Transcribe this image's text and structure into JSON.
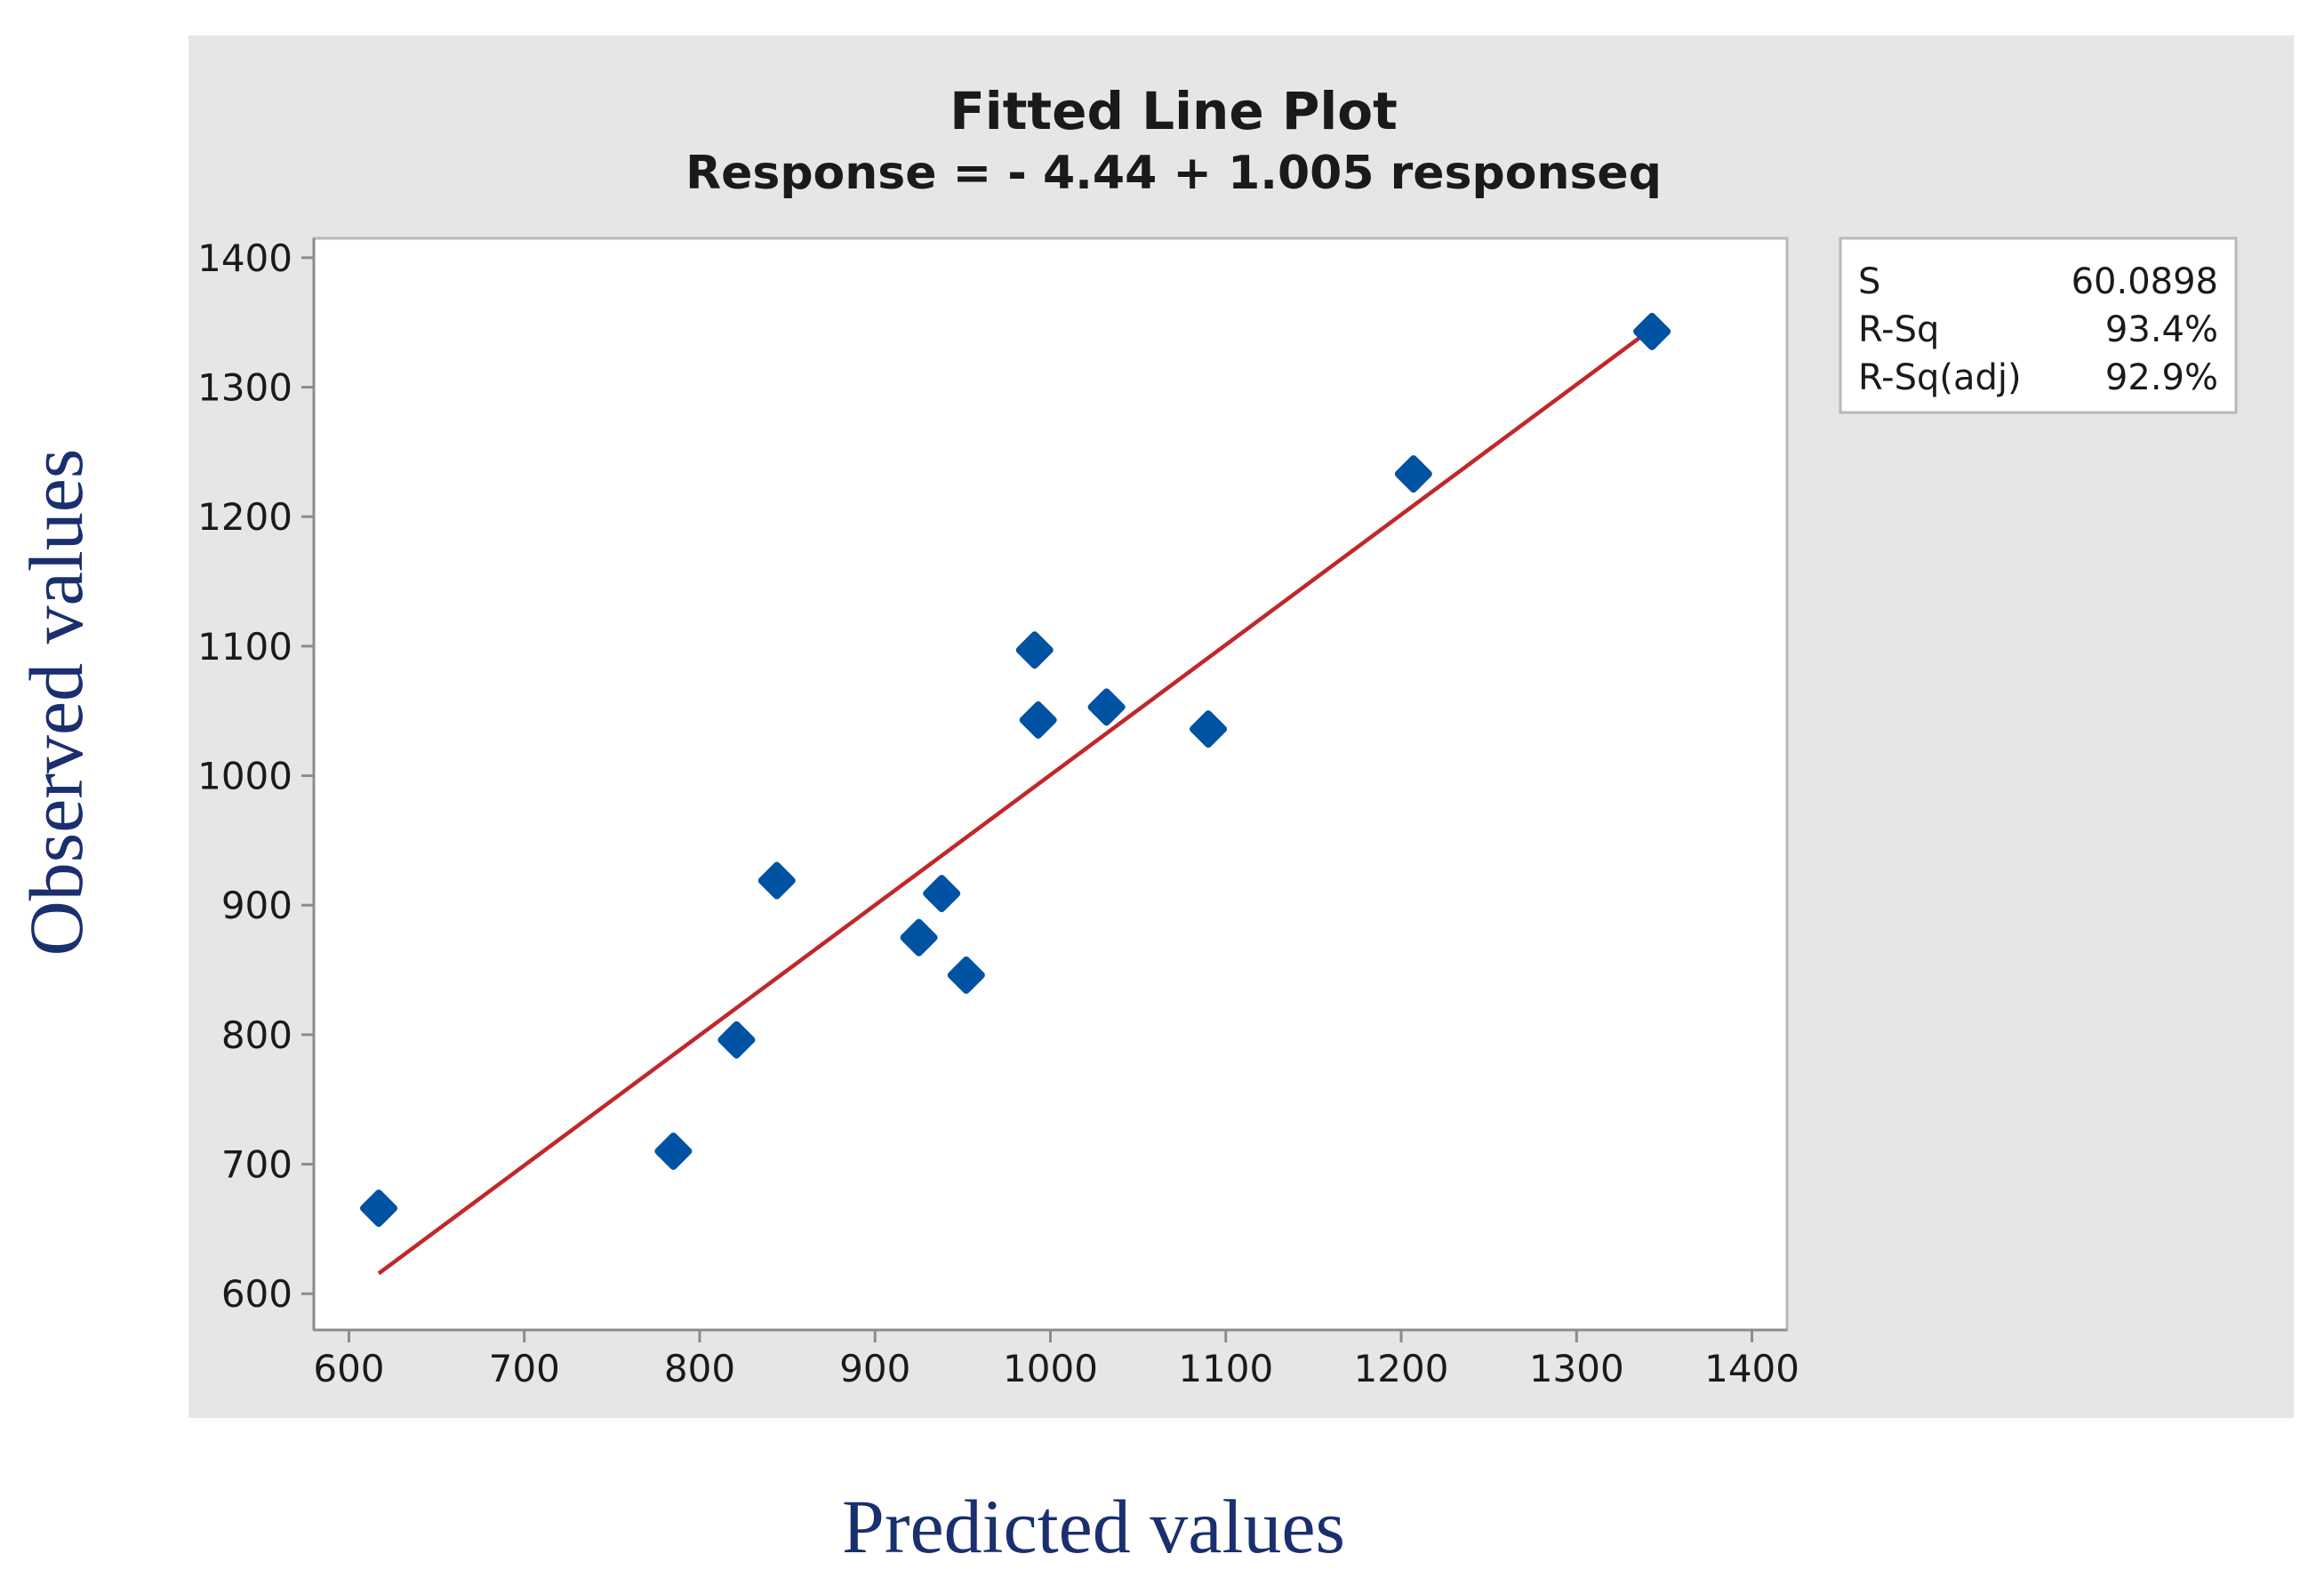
{
  "chart_data": {
    "type": "scatter",
    "title": "Fitted Line Plot",
    "subtitle": "Response = - 4.44 + 1.005 responseq",
    "xlabel": "Predicted values",
    "ylabel": "Observed values",
    "xlim": [
      580,
      1420
    ],
    "ylim": [
      572,
      1415
    ],
    "xticks": [
      600,
      700,
      800,
      900,
      1000,
      1100,
      1200,
      1300,
      1400
    ],
    "yticks": [
      600,
      700,
      800,
      900,
      1000,
      1100,
      1200,
      1300,
      1400
    ],
    "points": [
      {
        "x": 617,
        "y": 666
      },
      {
        "x": 785,
        "y": 710
      },
      {
        "x": 821,
        "y": 796
      },
      {
        "x": 844,
        "y": 919
      },
      {
        "x": 925,
        "y": 875
      },
      {
        "x": 938,
        "y": 909
      },
      {
        "x": 952,
        "y": 846
      },
      {
        "x": 991,
        "y": 1097
      },
      {
        "x": 993,
        "y": 1043
      },
      {
        "x": 1032,
        "y": 1053
      },
      {
        "x": 1090,
        "y": 1036
      },
      {
        "x": 1207,
        "y": 1233
      },
      {
        "x": 1343,
        "y": 1343
      }
    ],
    "fit_line": {
      "intercept": -4.44,
      "slope": 1.005,
      "x_start": 617,
      "x_end": 1343
    },
    "stats": [
      {
        "label": "S",
        "value": "60.0898"
      },
      {
        "label": "R-Sq",
        "value": "93.4%"
      },
      {
        "label": "R-Sq(adj)",
        "value": "92.9%"
      }
    ],
    "colors": {
      "panel_bg": "#e6e6e6",
      "plot_bg": "#ffffff",
      "point": "#0052a3",
      "fit_line": "#c0282a",
      "axis_label": "#1a2f6e",
      "text": "#1a1a1a"
    }
  }
}
